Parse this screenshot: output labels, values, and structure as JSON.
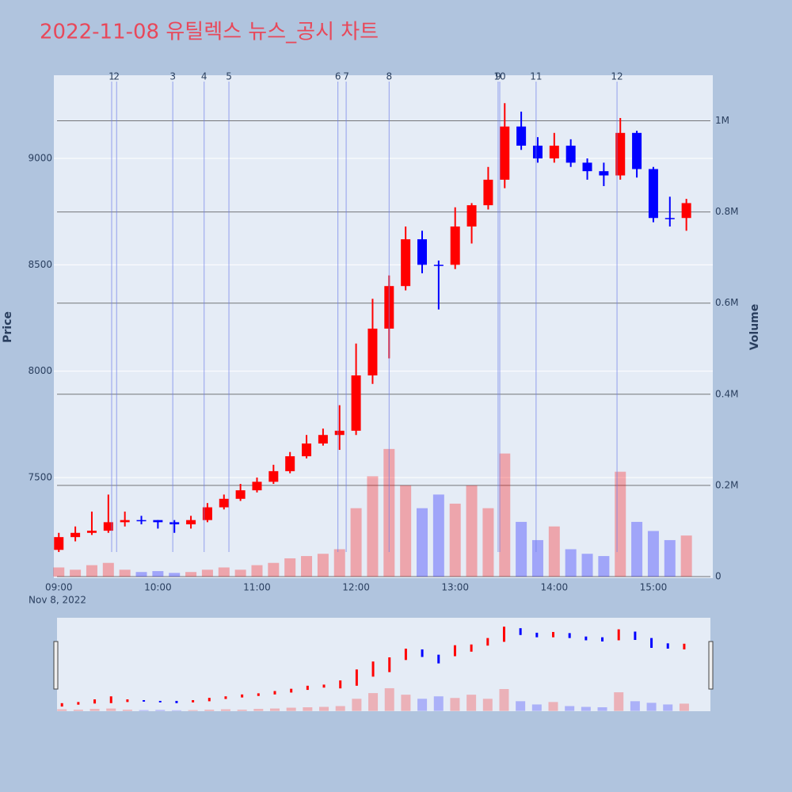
{
  "chart_data": {
    "type": "candlestick",
    "title": "2022-11-08 유틸렉스 뉴스_공시 차트",
    "y_label": "Price",
    "y2_label": "Volume",
    "date_label": "Nov 8, 2022",
    "x": [
      "09:00",
      "09:10",
      "09:20",
      "09:30",
      "09:40",
      "09:50",
      "10:00",
      "10:10",
      "10:20",
      "10:30",
      "10:40",
      "10:50",
      "11:00",
      "11:10",
      "11:20",
      "11:30",
      "11:40",
      "11:50",
      "12:00",
      "12:10",
      "12:20",
      "12:30",
      "12:40",
      "12:50",
      "13:00",
      "13:10",
      "13:20",
      "13:30",
      "13:40",
      "13:50",
      "14:00",
      "14:10",
      "14:20",
      "14:30",
      "14:40",
      "14:50",
      "15:00",
      "15:10",
      "15:20"
    ],
    "open": [
      7160,
      7220,
      7240,
      7250,
      7290,
      7300,
      7300,
      7290,
      7280,
      7300,
      7360,
      7400,
      7440,
      7480,
      7530,
      7600,
      7660,
      7700,
      7720,
      7980,
      8200,
      8400,
      8620,
      8500,
      8500,
      8680,
      8780,
      8900,
      9150,
      9060,
      9000,
      9060,
      8980,
      8940,
      8920,
      9120,
      8950,
      8720,
      8720
    ],
    "high": [
      7240,
      7270,
      7340,
      7420,
      7340,
      7320,
      7300,
      7300,
      7320,
      7380,
      7420,
      7470,
      7500,
      7560,
      7620,
      7700,
      7730,
      7840,
      8130,
      8340,
      8450,
      8680,
      8660,
      8520,
      8770,
      8790,
      8960,
      9260,
      9220,
      9100,
      9120,
      9090,
      9000,
      8980,
      9190,
      9130,
      8960,
      8820,
      8810
    ],
    "low": [
      7150,
      7200,
      7230,
      7240,
      7270,
      7280,
      7260,
      7240,
      7260,
      7290,
      7350,
      7390,
      7430,
      7470,
      7520,
      7590,
      7650,
      7630,
      7700,
      7940,
      8060,
      8380,
      8460,
      8290,
      8480,
      8600,
      8760,
      8860,
      9040,
      8980,
      8980,
      8960,
      8900,
      8870,
      8900,
      8910,
      8700,
      8680,
      8660
    ],
    "close": [
      7220,
      7240,
      7250,
      7290,
      7300,
      7300,
      7290,
      7280,
      7300,
      7360,
      7400,
      7440,
      7480,
      7530,
      7600,
      7660,
      7700,
      7720,
      7980,
      8200,
      8400,
      8620,
      8500,
      8500,
      8680,
      8780,
      8900,
      9150,
      9060,
      9000,
      9060,
      8980,
      8940,
      8920,
      9120,
      8950,
      8720,
      8720,
      8790
    ],
    "volume": [
      20000,
      15000,
      25000,
      30000,
      15000,
      10000,
      12000,
      8000,
      10000,
      15000,
      20000,
      15000,
      25000,
      30000,
      40000,
      45000,
      50000,
      60000,
      150000,
      220000,
      280000,
      200000,
      150000,
      180000,
      160000,
      200000,
      150000,
      270000,
      120000,
      80000,
      110000,
      60000,
      50000,
      45000,
      230000,
      120000,
      100000,
      80000,
      90000
    ],
    "increasing_color": "#ff0000",
    "decreasing_color": "#0000ff",
    "news": {
      "x": [
        "09:32",
        "09:35",
        "10:09",
        "10:28",
        "10:43",
        "11:49",
        "11:54",
        "12:20",
        "13:26",
        "13:27",
        "13:49",
        "14:38"
      ],
      "labels": [
        "1",
        "2",
        "3",
        "4",
        "5",
        "6",
        "7",
        "8",
        "9",
        "10",
        "11",
        "12"
      ],
      "color": "#6f7fe8"
    },
    "xlim": [
      "08:57",
      "15:36"
    ],
    "xticks": [
      "09:00",
      "10:00",
      "11:00",
      "12:00",
      "13:00",
      "14:00",
      "15:00"
    ],
    "ylim": [
      7027,
      9391
    ],
    "yticks": [
      7500,
      8000,
      8500,
      9000
    ],
    "y2lim": [
      -3500,
      1100000
    ],
    "y2ticks": [
      0,
      {
        "value": 200000,
        "label": "0.2M"
      },
      {
        "value": 400000,
        "label": "0.4M"
      },
      {
        "value": 600000,
        "label": "0.6M"
      },
      {
        "value": 800000,
        "label": "0.8M"
      },
      {
        "value": 1000000,
        "label": "1M"
      }
    ],
    "grid": true
  }
}
